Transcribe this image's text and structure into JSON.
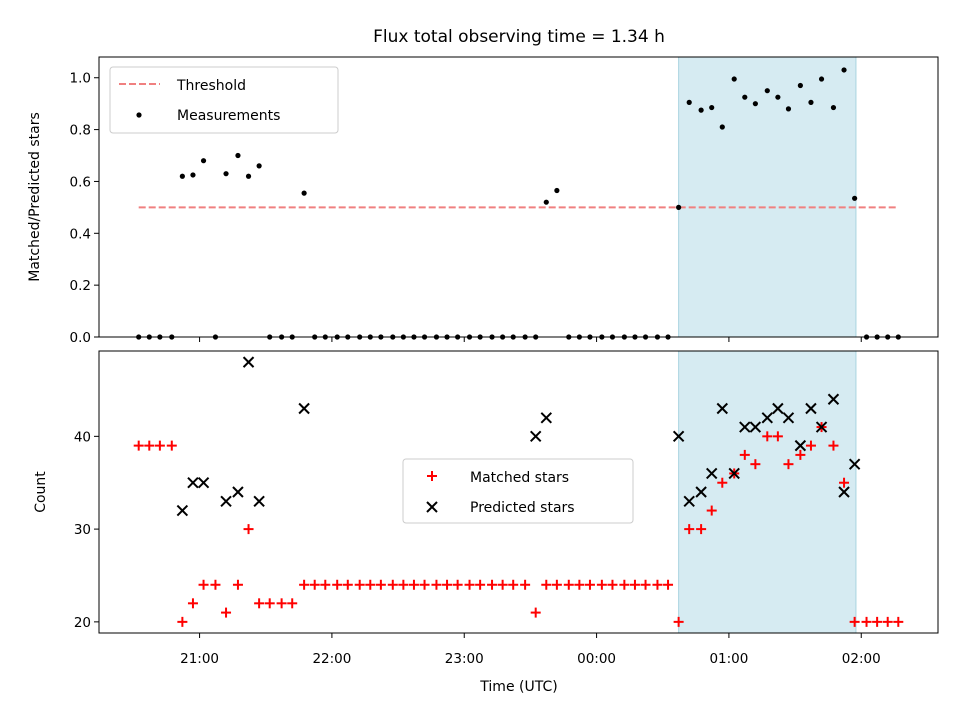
{
  "chart_data": {
    "type": "scatter",
    "title": "Flux total observing time = 1.34 h",
    "xlabel": "Time (UTC)",
    "x_ticks": [
      {
        "t": 21.0,
        "label": "21:00"
      },
      {
        "t": 22.0,
        "label": "22:00"
      },
      {
        "t": 23.0,
        "label": "23:00"
      },
      {
        "t": 24.0,
        "label": "00:00"
      },
      {
        "t": 25.0,
        "label": "01:00"
      },
      {
        "t": 26.0,
        "label": "02:00"
      }
    ],
    "xlim": [
      20.24,
      26.58
    ],
    "highlight_span": [
      24.62,
      25.96
    ],
    "panels": [
      {
        "ylabel": "Matched/Predicted stars",
        "ylim": [
          0,
          1.08
        ],
        "yticks": [
          {
            "v": 0.0,
            "label": "0.0"
          },
          {
            "v": 0.2,
            "label": "0.2"
          },
          {
            "v": 0.4,
            "label": "0.4"
          },
          {
            "v": 0.6,
            "label": "0.6"
          },
          {
            "v": 0.8,
            "label": "0.8"
          },
          {
            "v": 1.0,
            "label": "1.0"
          }
        ],
        "threshold": {
          "name": "Threshold",
          "value": 0.5,
          "x_range": [
            20.54,
            26.28
          ],
          "color": "#f08080"
        },
        "series": [
          {
            "name": "Measurements",
            "marker": "dot",
            "color": "#000000",
            "x": [
              20.54,
              20.62,
              20.7,
              20.79,
              20.87,
              20.95,
              21.03,
              21.12,
              21.2,
              21.29,
              21.37,
              21.45,
              21.53,
              21.62,
              21.7,
              21.79,
              21.87,
              21.95,
              22.04,
              22.12,
              22.21,
              22.29,
              22.37,
              22.46,
              22.54,
              22.62,
              22.7,
              22.79,
              22.87,
              22.95,
              23.04,
              23.12,
              23.21,
              23.29,
              23.37,
              23.46,
              23.54,
              23.62,
              23.7,
              23.79,
              23.87,
              23.95,
              24.04,
              24.12,
              24.21,
              24.29,
              24.37,
              24.46,
              24.54,
              24.62,
              24.7,
              24.79,
              24.87,
              24.95,
              25.04,
              25.12,
              25.2,
              25.29,
              25.37,
              25.45,
              25.54,
              25.62,
              25.7,
              25.79,
              25.87,
              25.95,
              26.04,
              26.12,
              26.2,
              26.28
            ],
            "y": [
              0,
              0,
              0,
              0,
              0.62,
              0.625,
              0.68,
              0,
              0.63,
              0.7,
              0.62,
              0.66,
              0,
              0,
              0,
              0.555,
              0,
              0,
              0,
              0,
              0,
              0,
              0,
              0,
              0,
              0,
              0,
              0,
              0,
              0,
              0,
              0,
              0,
              0,
              0,
              0,
              0,
              0.52,
              0.565,
              0,
              0,
              0,
              0,
              0,
              0,
              0,
              0,
              0,
              0,
              0.5,
              0.905,
              0.875,
              0.885,
              0.81,
              0.995,
              0.925,
              0.9,
              0.95,
              0.925,
              0.88,
              0.97,
              0.905,
              0.995,
              0.885,
              1.03,
              0.535,
              0,
              0,
              0,
              0
            ]
          }
        ],
        "legend": {
          "placement": "upper left",
          "entries": [
            "Threshold",
            "Measurements"
          ]
        }
      },
      {
        "ylabel": "Count",
        "ylim": [
          18.8,
          49.2
        ],
        "yticks": [
          {
            "v": 20,
            "label": "20"
          },
          {
            "v": 30,
            "label": "30"
          },
          {
            "v": 40,
            "label": "40"
          }
        ],
        "series": [
          {
            "name": "Matched stars",
            "marker": "plus",
            "color": "#ff0000",
            "x": [
              20.54,
              20.62,
              20.7,
              20.79,
              20.87,
              20.95,
              21.03,
              21.12,
              21.2,
              21.29,
              21.37,
              21.45,
              21.53,
              21.62,
              21.7,
              21.79,
              21.87,
              21.95,
              22.04,
              22.12,
              22.21,
              22.29,
              22.37,
              22.46,
              22.54,
              22.62,
              22.7,
              22.79,
              22.87,
              22.95,
              23.04,
              23.12,
              23.21,
              23.29,
              23.37,
              23.46,
              23.54,
              23.62,
              23.7,
              23.79,
              23.87,
              23.95,
              24.04,
              24.12,
              24.21,
              24.29,
              24.37,
              24.46,
              24.54,
              24.62,
              24.7,
              24.79,
              24.87,
              24.95,
              25.04,
              25.12,
              25.2,
              25.29,
              25.37,
              25.45,
              25.54,
              25.62,
              25.7,
              25.79,
              25.87,
              25.95,
              26.04,
              26.12,
              26.2,
              26.28
            ],
            "y": [
              39,
              39,
              39,
              39,
              20,
              22,
              24,
              24,
              21,
              24,
              30,
              22,
              22,
              22,
              22,
              24,
              24,
              24,
              24,
              24,
              24,
              24,
              24,
              24,
              24,
              24,
              24,
              24,
              24,
              24,
              24,
              24,
              24,
              24,
              24,
              24,
              21,
              24,
              24,
              24,
              24,
              24,
              24,
              24,
              24,
              24,
              24,
              24,
              24,
              20,
              30,
              30,
              32,
              35,
              36,
              38,
              37,
              40,
              40,
              37,
              38,
              39,
              41,
              39,
              35,
              20,
              20,
              20,
              20,
              20
            ]
          },
          {
            "name": "Predicted stars",
            "marker": "x",
            "color": "#000000",
            "x": [
              20.87,
              20.95,
              21.03,
              21.2,
              21.29,
              21.37,
              21.45,
              21.79,
              23.54,
              23.62,
              24.62,
              24.7,
              24.79,
              24.87,
              24.95,
              25.04,
              25.12,
              25.2,
              25.29,
              25.37,
              25.45,
              25.54,
              25.62,
              25.7,
              25.79,
              25.87,
              25.95
            ],
            "y": [
              32,
              35,
              35,
              33,
              34,
              48,
              33,
              43,
              40,
              42,
              40,
              33,
              34,
              36,
              43,
              36,
              41,
              41,
              42,
              43,
              42,
              39,
              43,
              41,
              44,
              34,
              37
            ]
          }
        ],
        "legend": {
          "placement": "center",
          "entries": [
            "Matched stars",
            "Predicted stars"
          ]
        }
      }
    ],
    "grid": false
  }
}
